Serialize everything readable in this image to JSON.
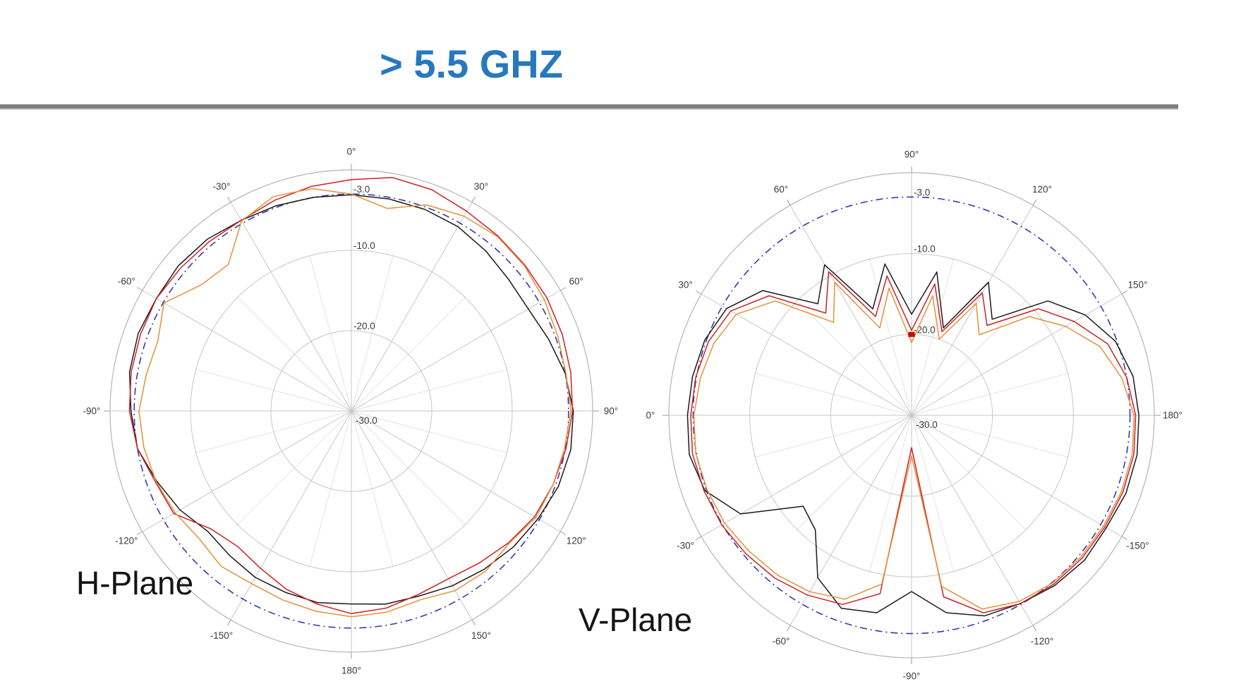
{
  "title": {
    "text": "> 5.5 GHZ",
    "color": "#2878be"
  },
  "divider_color": "#7f7f7f",
  "chart_data": [
    {
      "type": "polar-line",
      "plane_label": "H-Plane",
      "rotation_deg": 0,
      "radial_unit": "dB",
      "radial_range": [
        -30,
        0
      ],
      "grid": "on",
      "grid_circles_db": [
        -10,
        -20
      ],
      "radial_ticks": [
        {
          "label": "-3.0",
          "db": -3
        },
        {
          "label": "-10.0",
          "db": -10
        },
        {
          "label": "-20.0",
          "db": -20
        },
        {
          "label": "-30.0",
          "db": -30
        }
      ],
      "angle_ticks": [
        {
          "label": "0°",
          "screen_deg": 0
        },
        {
          "label": "30°",
          "screen_deg": 30
        },
        {
          "label": "60°",
          "screen_deg": 60
        },
        {
          "label": "90°",
          "screen_deg": 90
        },
        {
          "label": "120°",
          "screen_deg": 120
        },
        {
          "label": "150°",
          "screen_deg": 150
        },
        {
          "label": "180°",
          "screen_deg": 180
        },
        {
          "label": "-150°",
          "screen_deg": 210
        },
        {
          "label": "-120°",
          "screen_deg": 240
        },
        {
          "label": "-90°",
          "screen_deg": 270
        },
        {
          "label": "-60°",
          "screen_deg": 300
        },
        {
          "label": "-30°",
          "screen_deg": 330
        }
      ],
      "reference_circle": {
        "db": -3,
        "color": "#3939aa",
        "style": "dash-dot"
      },
      "series": [
        {
          "name": "black",
          "color": "#1a1a1a",
          "angle_start": -180,
          "angle_step": 10,
          "db": [
            -6.0,
            -5.8,
            -6.0,
            -6.1,
            -6.5,
            -6.7,
            -5.4,
            -4.3,
            -3.0,
            -2.6,
            -2.0,
            -1.8,
            -2.0,
            -1.9,
            -2.1,
            -2.6,
            -2.8,
            -3.0,
            -3.1,
            -3.2,
            -3.3,
            -3.5,
            -4.0,
            -4.5,
            -4.6,
            -3.9,
            -3.0,
            -2.4,
            -2.3,
            -2.6,
            -3.2,
            -3.7,
            -4.3,
            -4.9,
            -5.5,
            -5.6
          ]
        },
        {
          "name": "red",
          "color": "#cc2128",
          "angle_start": -180,
          "angle_step": 10,
          "db": [
            -4.8,
            -5.6,
            -6.4,
            -7.4,
            -8.0,
            -7.2,
            -4.5,
            -4.1,
            -3.0,
            -2.4,
            -2.2,
            -2.1,
            -2.0,
            -2.3,
            -2.5,
            -2.6,
            -2.1,
            -1.6,
            -1.2,
            -0.5,
            -0.7,
            -1.3,
            -1.6,
            -1.8,
            -1.9,
            -2.1,
            -2.3,
            -2.5,
            -2.9,
            -3.3,
            -3.7,
            -4.5,
            -5.3,
            -5.9,
            -5.7,
            -5.1
          ]
        },
        {
          "name": "orange",
          "color": "#e2923a",
          "angle_start": -180,
          "angle_step": 10,
          "db": [
            -4.4,
            -4.7,
            -5.0,
            -5.2,
            -4.8,
            -5.3,
            -4.7,
            -4.2,
            -3.8,
            -3.6,
            -4.1,
            -4.4,
            -3.1,
            -5.6,
            -6.2,
            -2.7,
            -1.6,
            -1.9,
            -3.0,
            -4.4,
            -2.7,
            -2.0,
            -1.7,
            -1.9,
            -2.3,
            -2.7,
            -2.9,
            -2.7,
            -3.1,
            -3.3,
            -3.5,
            -4.4,
            -4.0,
            -4.2,
            -5.0,
            -4.6
          ]
        }
      ]
    },
    {
      "type": "polar-line",
      "plane_label": "V-Plane",
      "rotation_deg": 90,
      "radial_unit": "dB",
      "radial_range": [
        -30,
        0
      ],
      "grid": "on",
      "grid_circles_db": [
        -10,
        -20
      ],
      "radial_ticks": [
        {
          "label": "-3.0",
          "db": -3
        },
        {
          "label": "-10.0",
          "db": -10
        },
        {
          "label": "-20.0",
          "db": -20
        },
        {
          "label": "-30.0",
          "db": -30
        }
      ],
      "angle_ticks": [
        {
          "label": "90°",
          "screen_deg": 0
        },
        {
          "label": "120°",
          "screen_deg": 30
        },
        {
          "label": "150°",
          "screen_deg": 60
        },
        {
          "label": "180°",
          "screen_deg": 90
        },
        {
          "label": "-150°",
          "screen_deg": 120
        },
        {
          "label": "-120°",
          "screen_deg": 150
        },
        {
          "label": "-90°",
          "screen_deg": 180
        },
        {
          "label": "-60°",
          "screen_deg": 210
        },
        {
          "label": "-30°",
          "screen_deg": 240
        },
        {
          "label": "0°",
          "screen_deg": 270
        },
        {
          "label": "30°",
          "screen_deg": 300
        },
        {
          "label": "60°",
          "screen_deg": 330
        }
      ],
      "reference_circle": {
        "db": -3,
        "color": "#3939aa",
        "style": "dash-dot"
      },
      "marker": {
        "angle_deg": 90,
        "db": -20,
        "color": "#cc0000"
      },
      "series": [
        {
          "name": "black",
          "color": "#1a1a1a",
          "angle_start": -180,
          "angle_step": 10,
          "db": [
            -1.9,
            -1.7,
            -1.8,
            -2.2,
            -2.1,
            -2.5,
            -3.1,
            -3.6,
            -5.2,
            -8.2,
            -5.2,
            -4.6,
            -6.8,
            -11.5,
            -12.5,
            -5.6,
            -2.8,
            -2.1,
            -2.3,
            -2.5,
            -2.8,
            -3.6,
            -6.0,
            -12.0,
            -8.5,
            -16.0,
            -11.0,
            -17.5,
            -12.0,
            -18.5,
            -11.0,
            -14.5,
            -8.0,
            -5.2,
            -3.2,
            -2.2
          ]
        },
        {
          "name": "red",
          "color": "#cc2128",
          "angle_start": -180,
          "angle_step": 10,
          "db": [
            -2.3,
            -2.1,
            -2.2,
            -2.4,
            -2.5,
            -2.7,
            -3.1,
            -4.0,
            -7.2,
            -26.0,
            -7.6,
            -5.1,
            -4.3,
            -3.7,
            -3.3,
            -2.9,
            -2.7,
            -2.5,
            -2.7,
            -2.9,
            -3.3,
            -4.2,
            -7.0,
            -13.5,
            -9.5,
            -17.0,
            -12.5,
            -19.5,
            -13.5,
            -19.0,
            -12.5,
            -15.5,
            -9.5,
            -6.8,
            -4.2,
            -3.0
          ]
        },
        {
          "name": "orange",
          "color": "#e2923a",
          "angle_start": -180,
          "angle_step": 10,
          "db": [
            -2.5,
            -2.3,
            -2.4,
            -2.6,
            -2.7,
            -2.9,
            -3.4,
            -4.5,
            -8.5,
            -25.0,
            -8.8,
            -5.8,
            -4.8,
            -4.2,
            -3.8,
            -3.3,
            -3.1,
            -2.9,
            -3.1,
            -3.5,
            -4.0,
            -5.0,
            -8.0,
            -15.0,
            -11.0,
            -18.5,
            -14.0,
            -21.0,
            -15.0,
            -20.0,
            -14.0,
            -17.0,
            -11.0,
            -8.0,
            -5.2,
            -3.6
          ]
        }
      ]
    }
  ]
}
